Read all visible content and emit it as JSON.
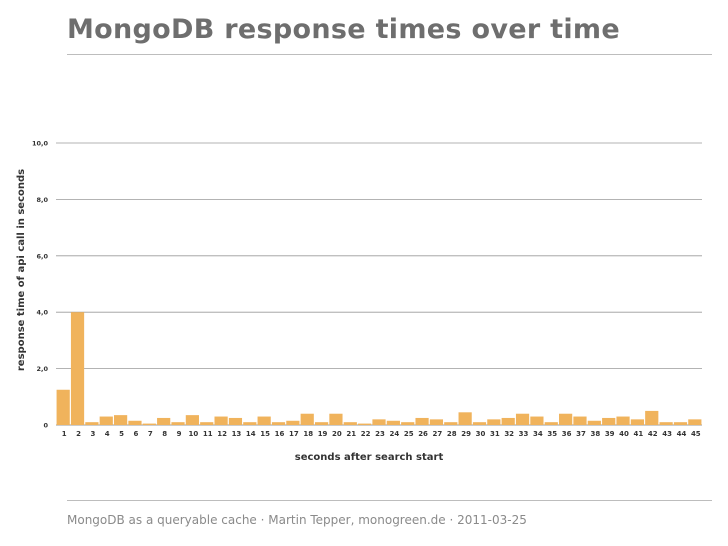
{
  "slide": {
    "title": "MongoDB response times over time",
    "footer": "MongoDB as a queryable cache · Martin Tepper, monogreen.de · 2011-03-25"
  },
  "colors": {
    "bar": "#f0b35c",
    "grid": "#9a9a9a",
    "title": "#6e6e6e",
    "footer": "#8a8a8a"
  },
  "chart_data": {
    "type": "bar",
    "title": "",
    "xlabel": "seconds after search start",
    "ylabel": "response time of api call in seconds",
    "ylim": [
      0,
      10
    ],
    "yticks": [
      0,
      2,
      4,
      6,
      8,
      10
    ],
    "ytick_labels": [
      "0",
      "2,0",
      "4,0",
      "6,0",
      "8,0",
      "10,0"
    ],
    "grid": true,
    "categories": [
      "1",
      "2",
      "3",
      "4",
      "5",
      "6",
      "7",
      "8",
      "9",
      "10",
      "11",
      "12",
      "13",
      "14",
      "15",
      "16",
      "17",
      "18",
      "19",
      "20",
      "21",
      "22",
      "23",
      "24",
      "25",
      "26",
      "27",
      "28",
      "29",
      "30",
      "31",
      "32",
      "33",
      "34",
      "35",
      "36",
      "37",
      "38",
      "39",
      "40",
      "41",
      "42",
      "43",
      "44",
      "45"
    ],
    "values": [
      1.25,
      4.0,
      0.1,
      0.3,
      0.35,
      0.15,
      0.05,
      0.25,
      0.1,
      0.35,
      0.1,
      0.3,
      0.25,
      0.1,
      0.3,
      0.1,
      0.15,
      0.4,
      0.1,
      0.4,
      0.1,
      0.05,
      0.2,
      0.15,
      0.1,
      0.25,
      0.2,
      0.1,
      0.45,
      0.1,
      0.2,
      0.25,
      0.4,
      0.3,
      0.1,
      0.4,
      0.3,
      0.15,
      0.25,
      0.3,
      0.2,
      0.5,
      0.1,
      0.1,
      0.2
    ]
  }
}
